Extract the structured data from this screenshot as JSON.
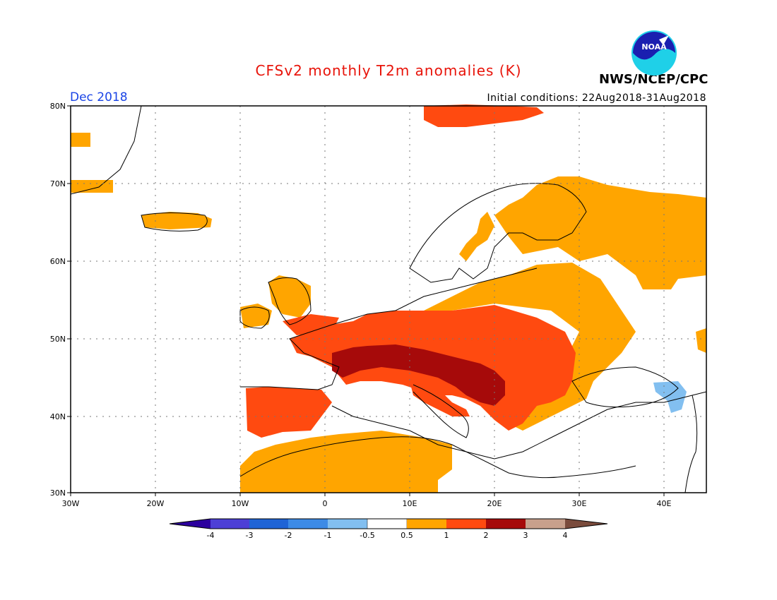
{
  "header": {
    "title": "CFSv2 monthly T2m anomalies (K)",
    "valid_month": "Dec 2018",
    "initial_conditions": "Initial conditions: 22Aug2018-31Aug2018",
    "org": "NWS/NCEP/CPC",
    "logo_text": "NOAA"
  },
  "axes": {
    "lat_labels": [
      "80N",
      "70N",
      "60N",
      "50N",
      "40N",
      "30N"
    ],
    "lon_labels": [
      "30W",
      "20W",
      "10W",
      "0",
      "10E",
      "20E",
      "30E",
      "40E"
    ]
  },
  "map_extent": {
    "lon": [
      -30,
      45
    ],
    "lat": [
      30,
      80
    ]
  },
  "colorbar": {
    "tick_labels": [
      "-4",
      "-3",
      "-2",
      "-1",
      "-0.5",
      "0.5",
      "1",
      "2",
      "3",
      "4"
    ],
    "colors": [
      "#2c009e",
      "#4d3fd6",
      "#1f64d6",
      "#3d8be6",
      "#82bff0",
      "#ffffff",
      "#ffa500",
      "#ff4a10",
      "#a60a0a",
      "#c8a08c",
      "#7a4b3c"
    ]
  }
}
